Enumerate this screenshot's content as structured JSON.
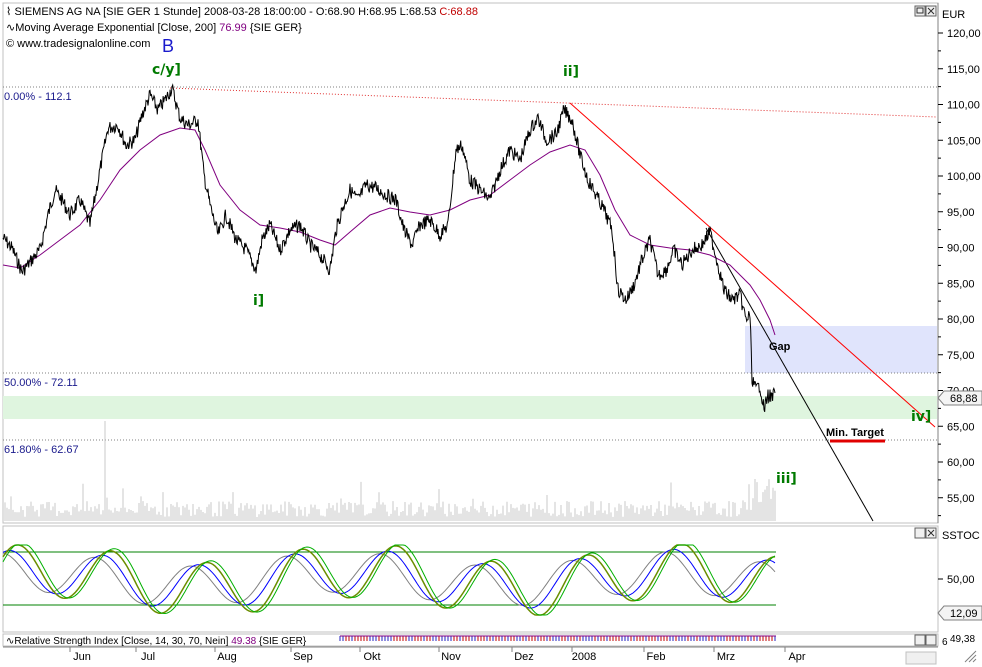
{
  "header": {
    "line1_prefix": "SIEMENS AG NA [SIE GER  1 Stunde] 2008-03-28 18:00:00 - O:68.90 H:68.95 L:68.53",
    "line1_close": "C:68.88",
    "line2_prefix": "Moving Average Exponential [Close, 200]",
    "line2_value": "76.99",
    "line2_suffix": "{SIE GER}",
    "line3": "www.tradesignalonline.com",
    "wave_b": "B"
  },
  "main_chart": {
    "currency": "EUR",
    "last_price": "68,88",
    "y_ticks": [
      "120,00",
      "115,00",
      "110,00",
      "105,00",
      "100,00",
      "95,00",
      "90,00",
      "85,00",
      "80,00",
      "75,00",
      "70,00",
      "65,00",
      "60,00",
      "55,00"
    ],
    "y_values": [
      120,
      115,
      110,
      105,
      100,
      95,
      90,
      85,
      80,
      75,
      70,
      65,
      60,
      55
    ],
    "fib_levels": [
      {
        "label": "0.00% - 112.1",
        "value": 112.1
      },
      {
        "label": "50.00% - 72.11",
        "value": 72.11
      },
      {
        "label": "61.80% - 62.67",
        "value": 62.67
      }
    ],
    "wave_labels": {
      "cy": "c/y]",
      "ii": "ii]",
      "i": "i]",
      "iii": "iii]",
      "iv": "iv]"
    },
    "annotations": {
      "gap": "Gap",
      "min_target": "Min. Target"
    },
    "colors": {
      "price": "#000000",
      "ema": "#800080",
      "trendline": "#ff0000",
      "gap_zone": "#e0e4fc",
      "target_zone": "#dff5df",
      "wave_label": "#007a00"
    }
  },
  "oscillator": {
    "title": "SSTOC",
    "y_ticks": [
      "50,00"
    ],
    "last_value": "12,09"
  },
  "bottom_panel": {
    "title": "Relative Strength Index [Close, 14, 30, 70, Nein]",
    "value": "49.38",
    "suffix": "{SIE GER}",
    "last_value": "49,38",
    "right_tick": "6"
  },
  "x_axis": {
    "labels": [
      "Jun",
      "Jul",
      "Aug",
      "Sep",
      "Okt",
      "Nov",
      "Dez",
      "2008",
      "Feb",
      "Mrz",
      "Apr"
    ]
  }
}
